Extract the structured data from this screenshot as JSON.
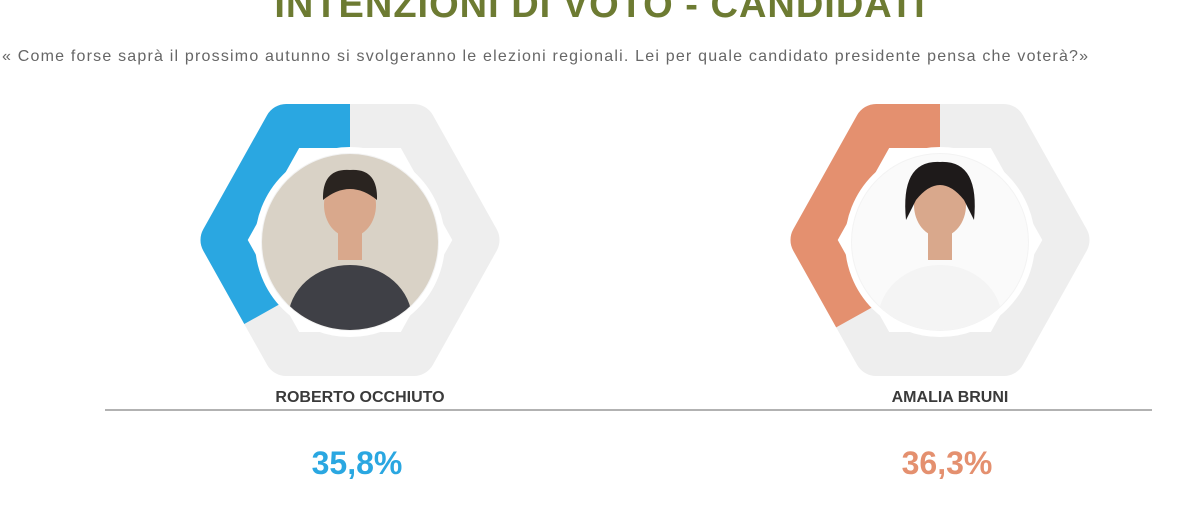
{
  "header": {
    "title": "INTENZIONI DI VOTO - CANDIDATI",
    "question": "« Come forse saprà il prossimo autunno si svolgeranno le elezioni regionali. Lei per quale candidato presidente pensa che voterà?»"
  },
  "candidates": [
    {
      "name": "ROBERTO OCCHIUTO",
      "value": 35.8,
      "value_label": "35,8%",
      "color": "#2aa7e1"
    },
    {
      "name": "AMALIA BRUNI",
      "value": 36.3,
      "value_label": "36,3%",
      "color": "#e4906f"
    }
  ]
}
